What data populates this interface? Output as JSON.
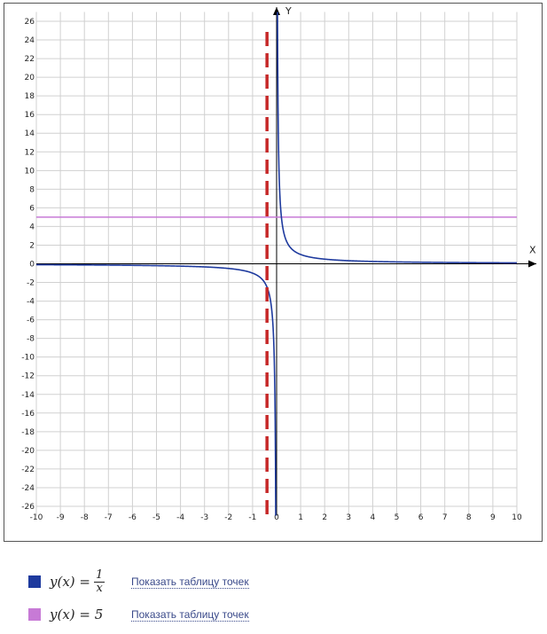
{
  "chart_data": {
    "type": "line",
    "xlabel": "X",
    "ylabel": "Y",
    "xlim": [
      -10,
      10
    ],
    "ylim": [
      -27,
      27
    ],
    "x_ticks": [
      -10,
      -9,
      -8,
      -7,
      -6,
      -5,
      -4,
      -3,
      -2,
      -1,
      0,
      1,
      2,
      3,
      4,
      5,
      6,
      7,
      8,
      9,
      10
    ],
    "y_ticks": [
      26,
      24,
      22,
      20,
      18,
      16,
      14,
      12,
      10,
      8,
      6,
      4,
      2,
      0,
      -2,
      -4,
      -6,
      -8,
      -10,
      -12,
      -14,
      -16,
      -18,
      -20,
      -22,
      -24,
      -26
    ],
    "grid": true,
    "series": [
      {
        "name": "y(x) = 1/x",
        "function": "1/x",
        "color": "#1e3a9e"
      },
      {
        "name": "y(x) = 5",
        "function": "5",
        "color": "#c77ad6"
      }
    ],
    "annotations": [
      {
        "type": "vertical_dashed_line",
        "x": -0.4,
        "color": "#c62828"
      }
    ]
  },
  "legend": {
    "items": [
      {
        "formula_prefix": "y(x) = ",
        "numerator": "1",
        "denominator": "x",
        "color": "#1e3a9e",
        "link": "Показать таблицу точек"
      },
      {
        "formula_text": "y(x) = 5",
        "color": "#c77ad6",
        "link": "Показать таблицу точек"
      }
    ]
  }
}
